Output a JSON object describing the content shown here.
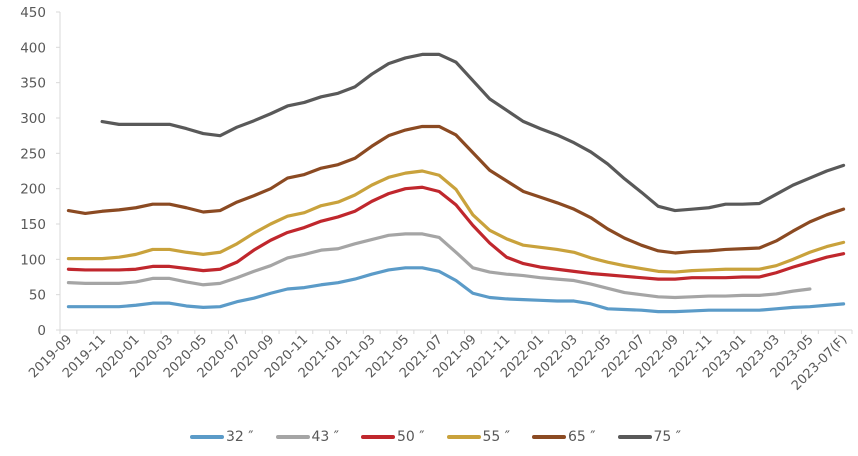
{
  "chart_data": {
    "type": "line",
    "title": "",
    "xlabel": "",
    "ylabel": "",
    "ylim": [
      0,
      450
    ],
    "yticks": [
      "0",
      "50",
      "100",
      "150",
      "200",
      "250",
      "300",
      "350",
      "400",
      "450"
    ],
    "grid": false,
    "legend_position": "bottom",
    "x": [
      "2019-09",
      "2019-10",
      "2019-11",
      "2019-12",
      "2020-01",
      "2020-02",
      "2020-03",
      "2020-04",
      "2020-05",
      "2020-06",
      "2020-07",
      "2020-08",
      "2020-09",
      "2020-10",
      "2020-11",
      "2020-12",
      "2021-01",
      "2021-02",
      "2021-03",
      "2021-04",
      "2021-05",
      "2021-06",
      "2021-07",
      "2021-08",
      "2021-09",
      "2021-10",
      "2021-11",
      "2021-12",
      "2022-01",
      "2022-02",
      "2022-03",
      "2022-04",
      "2022-05",
      "2022-06",
      "2022-07",
      "2022-08",
      "2022-09",
      "2022-10",
      "2022-11",
      "2022-12",
      "2023-01",
      "2023-02",
      "2023-03",
      "2023-04",
      "2023-05",
      "2023-06",
      "2023-07(F)"
    ],
    "xtick_labels": [
      "2019-09",
      "2019-11",
      "2020-01",
      "2020-03",
      "2020-05",
      "2020-07",
      "2020-09",
      "2020-11",
      "2021-01",
      "2021-03",
      "2021-05",
      "2021-07",
      "2021-09",
      "2021-11",
      "2022-01",
      "2022-03",
      "2022-05",
      "2022-07",
      "2022-09",
      "2022-11",
      "2023-01",
      "2023-03",
      "2023-05",
      "2023-07(F)"
    ],
    "series": [
      {
        "name": "32 ″",
        "color": "#5b9bc8",
        "values": [
          33,
          33,
          33,
          33,
          35,
          38,
          38,
          34,
          32,
          33,
          40,
          45,
          52,
          58,
          60,
          64,
          67,
          72,
          79,
          85,
          88,
          88,
          83,
          70,
          52,
          46,
          44,
          43,
          42,
          41,
          41,
          37,
          30,
          29,
          28,
          26,
          26,
          27,
          28,
          28,
          28,
          28,
          30,
          32,
          33,
          35,
          37
        ]
      },
      {
        "name": "43 ″",
        "color": "#a5a5a5",
        "values": [
          67,
          66,
          66,
          66,
          68,
          73,
          73,
          68,
          64,
          66,
          74,
          83,
          91,
          102,
          107,
          113,
          115,
          122,
          128,
          134,
          136,
          136,
          131,
          110,
          88,
          82,
          79,
          77,
          74,
          72,
          70,
          65,
          59,
          53,
          50,
          47,
          46,
          47,
          48,
          48,
          49,
          49,
          51,
          55,
          58,
          null,
          null
        ]
      },
      {
        "name": "50 ″",
        "color": "#c0272d",
        "values": [
          86,
          85,
          85,
          85,
          86,
          90,
          90,
          87,
          84,
          86,
          96,
          113,
          127,
          138,
          145,
          154,
          160,
          168,
          182,
          193,
          200,
          202,
          196,
          177,
          148,
          123,
          103,
          94,
          89,
          86,
          83,
          80,
          78,
          76,
          74,
          72,
          72,
          74,
          74,
          74,
          75,
          75,
          81,
          89,
          96,
          103,
          108
        ]
      },
      {
        "name": "55 ″",
        "color": "#c9a23c",
        "values": [
          101,
          101,
          101,
          103,
          107,
          114,
          114,
          110,
          107,
          110,
          122,
          137,
          150,
          161,
          166,
          176,
          181,
          191,
          205,
          216,
          222,
          225,
          219,
          199,
          163,
          141,
          129,
          120,
          117,
          114,
          110,
          102,
          96,
          91,
          87,
          83,
          82,
          84,
          85,
          86,
          86,
          86,
          91,
          100,
          110,
          118,
          124
        ]
      },
      {
        "name": "65 ″",
        "color": "#8b4a22",
        "values": [
          169,
          165,
          168,
          170,
          173,
          178,
          178,
          173,
          167,
          169,
          181,
          190,
          200,
          215,
          220,
          229,
          234,
          243,
          260,
          275,
          283,
          288,
          288,
          276,
          251,
          226,
          211,
          196,
          188,
          180,
          171,
          159,
          143,
          130,
          120,
          112,
          109,
          111,
          112,
          114,
          115,
          116,
          126,
          140,
          153,
          163,
          171
        ]
      },
      {
        "name": "75 ″",
        "color": "#595959",
        "values": [
          null,
          null,
          295,
          291,
          291,
          291,
          291,
          285,
          278,
          275,
          287,
          296,
          306,
          317,
          322,
          330,
          335,
          344,
          362,
          377,
          385,
          390,
          390,
          379,
          353,
          327,
          311,
          295,
          285,
          276,
          265,
          252,
          235,
          214,
          195,
          175,
          169,
          171,
          173,
          178,
          178,
          179,
          192,
          205,
          215,
          225,
          233
        ]
      }
    ]
  }
}
